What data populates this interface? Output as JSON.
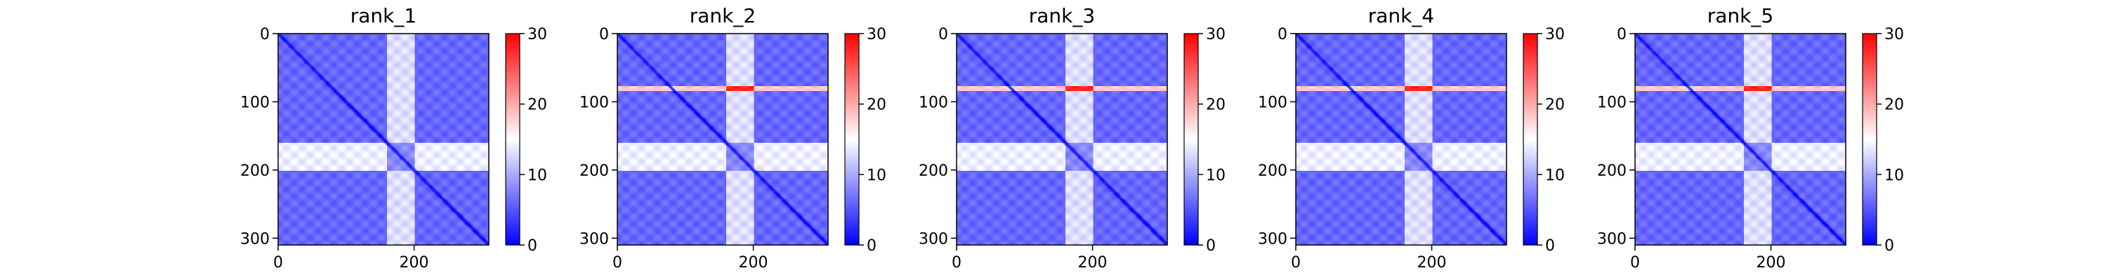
{
  "chart_data": {
    "type": "heatmap",
    "colormap": [
      "#0000ff",
      "#ffffff",
      "#ff0000"
    ],
    "shared_axes": {
      "matrix_size": 310,
      "x_ticks": [
        0,
        200
      ],
      "y_ticks": [
        0,
        100,
        200,
        300
      ],
      "clim": [
        0,
        30
      ],
      "colorbar_ticks": [
        0,
        10,
        20,
        30
      ]
    },
    "features": {
      "diagonal": 0,
      "background": 6,
      "band_low_rows": [
        160,
        200
      ],
      "band_low_value": 14,
      "band_center_cols": [
        160,
        200
      ],
      "band_center_value": 13,
      "cross_value": 8,
      "thin_row": 80,
      "thin_row_value": 18,
      "peak_value": 28
    },
    "panels": [
      {
        "title": "rank_1",
        "thin_row_visible": false
      },
      {
        "title": "rank_2",
        "thin_row_visible": true
      },
      {
        "title": "rank_3",
        "thin_row_visible": true
      },
      {
        "title": "rank_4",
        "thin_row_visible": true
      },
      {
        "title": "rank_5",
        "thin_row_visible": true
      }
    ]
  }
}
